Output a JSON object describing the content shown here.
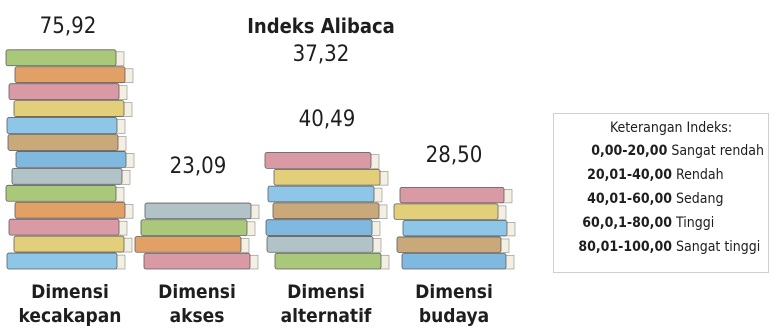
{
  "chart_data": {
    "type": "bar",
    "title": "Indeks Alibaca",
    "overall_value": "37,32",
    "categories": [
      {
        "line1": "Dimensi",
        "line2": "kecakapan"
      },
      {
        "line1": "Dimensi",
        "line2": "akses"
      },
      {
        "line1": "Dimensi",
        "line2": "alternatif"
      },
      {
        "line1": "Dimensi",
        "line2": "budaya"
      }
    ],
    "values": [
      75.92,
      23.09,
      40.49,
      28.5
    ],
    "value_labels": [
      "75,92",
      "23,09",
      "40,49",
      "28,50"
    ],
    "legend": {
      "title": "Keterangan Indeks:",
      "items": [
        {
          "range": "0,00-20,00",
          "label": "Sangat rendah"
        },
        {
          "range": "20,01-40,00",
          "label": "Rendah"
        },
        {
          "range": "40,01-60,00",
          "label": "Sedang"
        },
        {
          "range": "60,0,1-80,00",
          "label": "Tinggi"
        },
        {
          "range": "80,01-100,00",
          "label": "Sangat tinggi"
        }
      ]
    },
    "book_colors": [
      "#8ec6e8",
      "#e3cf7a",
      "#d99aa6",
      "#e0a066",
      "#a9c87a",
      "#b2c3c8",
      "#7fb9df",
      "#c9a87a"
    ]
  }
}
